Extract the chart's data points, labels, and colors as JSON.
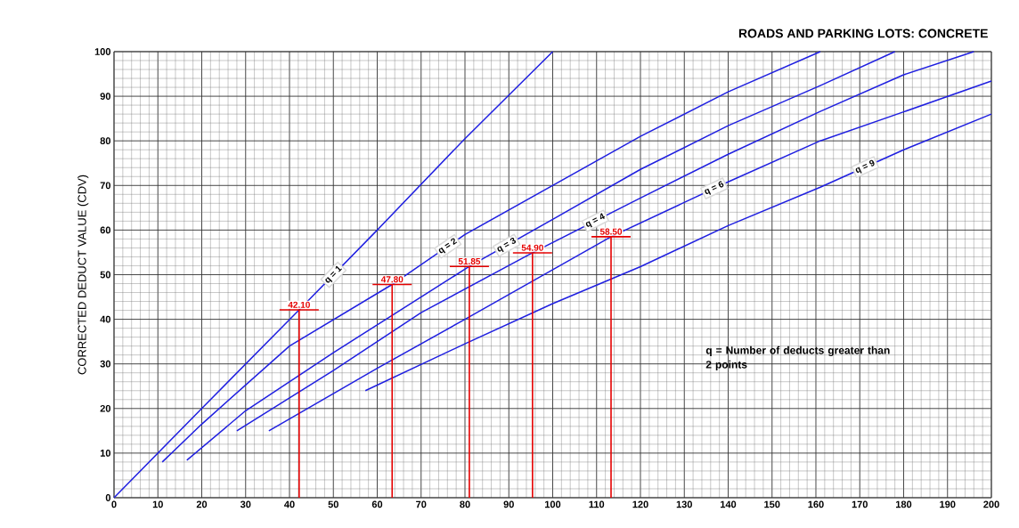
{
  "chart_data": {
    "type": "line",
    "title": "ROADS AND PARKING LOTS: CONCRETE",
    "ylabel": "CORRECTED DEDUCT VALUE (CDV)",
    "xlim": [
      0,
      200
    ],
    "xticks": [
      0,
      10,
      20,
      30,
      40,
      50,
      60,
      70,
      80,
      90,
      100,
      110,
      120,
      130,
      140,
      150,
      160,
      170,
      180,
      190,
      200
    ],
    "ylim": [
      0,
      100
    ],
    "yticks": [
      0,
      10,
      20,
      30,
      40,
      50,
      60,
      70,
      80,
      90,
      100
    ],
    "grid": true,
    "marker": "none",
    "line_style": "solid",
    "series": [
      {
        "name": "q = 1",
        "color": "#1f1fe0",
        "x": [
          0,
          20,
          42.2,
          60,
          80,
          100
        ],
        "values": [
          0,
          20,
          42.1,
          60,
          80.5,
          100
        ]
      },
      {
        "name": "q = 2",
        "color": "#1f1fe0",
        "x": [
          11,
          20,
          40,
          63.4,
          80,
          100,
          120,
          140,
          161
        ],
        "values": [
          8,
          16.5,
          34,
          47.8,
          59,
          70,
          81,
          91,
          100
        ]
      },
      {
        "name": "q = 3",
        "color": "#1f1fe0",
        "x": [
          16.6,
          30,
          50,
          81,
          100,
          120,
          140,
          161,
          178
        ],
        "values": [
          8.4,
          19.5,
          32.5,
          51.85,
          62.4,
          73.6,
          83.4,
          92.4,
          100
        ]
      },
      {
        "name": "q = 4",
        "color": "#1f1fe0",
        "x": [
          28,
          50,
          70,
          95.4,
          120,
          140,
          161,
          180,
          196
        ],
        "values": [
          15,
          28.5,
          41.5,
          54.9,
          67.2,
          77,
          86.6,
          94.8,
          100
        ]
      },
      {
        "name": "q = 6",
        "color": "#1f1fe0",
        "x": [
          35.3,
          60,
          80,
          113.3,
          140,
          161,
          180,
          200
        ],
        "values": [
          15,
          29,
          40,
          58.5,
          70.8,
          80,
          86.5,
          93.4
        ]
      },
      {
        "name": "q = 9",
        "color": "#1f1fe0",
        "x": [
          57.3,
          80,
          100,
          120,
          140,
          161,
          180,
          200
        ],
        "values": [
          24,
          34.5,
          43.5,
          51.8,
          61,
          69.6,
          78,
          86
        ]
      }
    ],
    "annotations": [
      {
        "text": "42.10",
        "x": 42.2,
        "y": 42.1
      },
      {
        "text": "47.80",
        "x": 63.4,
        "y": 47.8
      },
      {
        "text": "51.85",
        "x": 81,
        "y": 51.85
      },
      {
        "text": "54.90",
        "x": 95.4,
        "y": 54.9
      },
      {
        "text": "58.50",
        "x": 113.3,
        "y": 58.5
      },
      "q = Number of deducts greater than 2 points"
    ]
  }
}
